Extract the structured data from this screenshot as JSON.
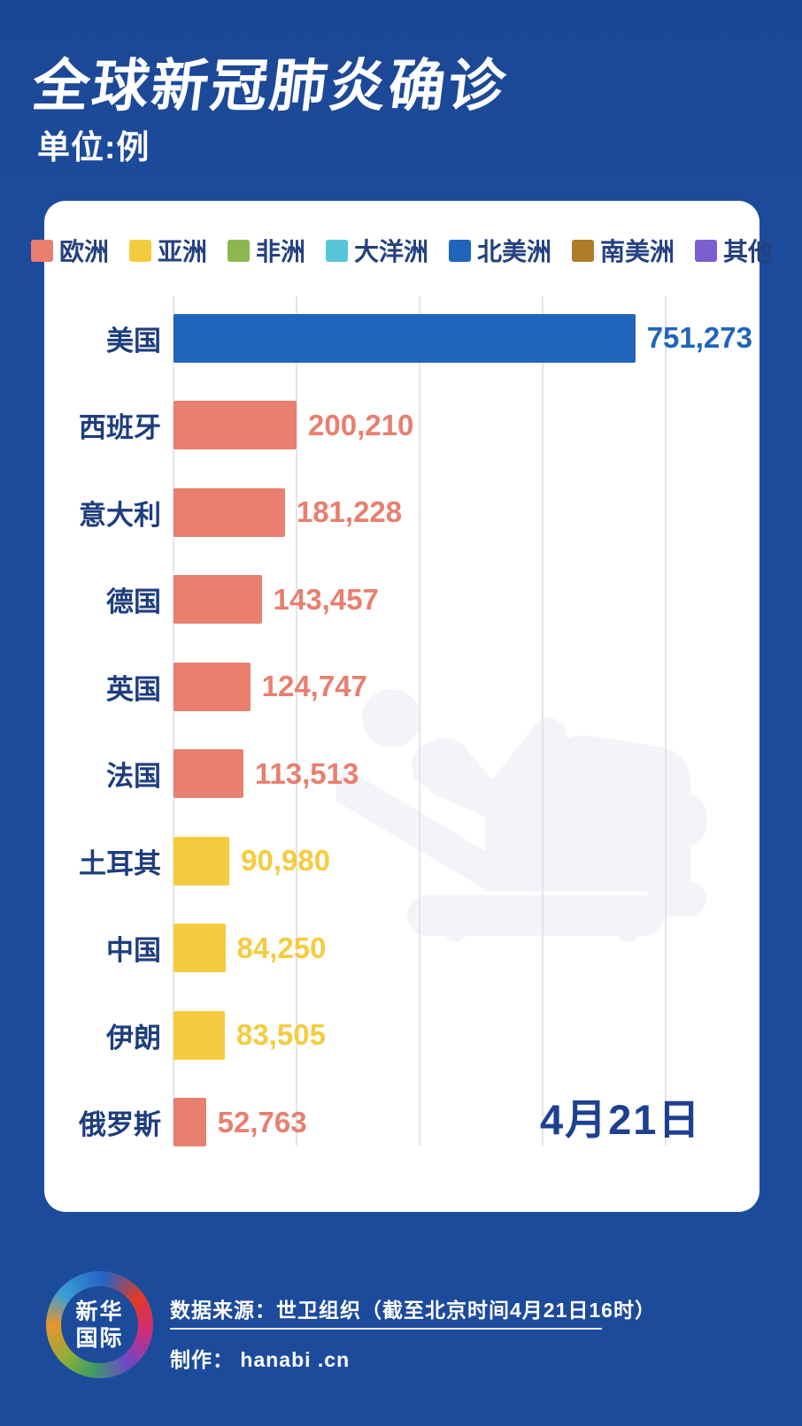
{
  "header": {
    "title": "全球新冠肺炎确诊",
    "subtitle": "单位:例"
  },
  "colors": {
    "background": "#1d4b9c",
    "card": "#ffffff",
    "label_navy": "#1e3d7e",
    "gridline": "#e3e5e9",
    "europe": "#e87f6f",
    "asia": "#f5cc3f",
    "africa": "#8ab84e",
    "oceania": "#56c5d8",
    "north_america": "#2164bb",
    "south_america": "#ad7d2b",
    "other": "#7b5fd0"
  },
  "chart_data": {
    "type": "bar",
    "orientation": "horizontal",
    "title": "全球新冠肺炎确诊",
    "unit": "例",
    "grid": true,
    "legend_position": "top",
    "legend": [
      {
        "label": "欧洲",
        "color": "#e87f6f"
      },
      {
        "label": "亚洲",
        "color": "#f5cc3f"
      },
      {
        "label": "非洲",
        "color": "#8ab84e"
      },
      {
        "label": "大洋洲",
        "color": "#56c5d8"
      },
      {
        "label": "北美洲",
        "color": "#2164bb"
      },
      {
        "label": "南美洲",
        "color": "#ad7d2b"
      },
      {
        "label": "其他",
        "color": "#7b5fd0"
      }
    ],
    "categories": [
      "美国",
      "西班牙",
      "意大利",
      "德国",
      "英国",
      "法国",
      "土耳其",
      "中国",
      "伊朗",
      "俄罗斯"
    ],
    "values": [
      751273,
      200210,
      181228,
      143457,
      124747,
      113513,
      90980,
      84250,
      83505,
      52763
    ],
    "value_labels": [
      "751,273",
      "200,210",
      "181,228",
      "143,457",
      "124,747",
      "113,513",
      "90,980",
      "84,250",
      "83,505",
      "52,763"
    ],
    "continents": [
      "北美洲",
      "欧洲",
      "欧洲",
      "欧洲",
      "欧洲",
      "欧洲",
      "亚洲",
      "亚洲",
      "亚洲",
      "欧洲"
    ],
    "bar_colors": [
      "#2164bb",
      "#e87f6f",
      "#e87f6f",
      "#e87f6f",
      "#e87f6f",
      "#e87f6f",
      "#f5cc3f",
      "#f5cc3f",
      "#f5cc3f",
      "#e87f6f"
    ],
    "axis_max": 921600,
    "gridline_interval": 200000,
    "annotation_date": "4月21日"
  },
  "watermark": {
    "name": "patient-on-hospital-bed-icon"
  },
  "footer": {
    "logo": {
      "line1": "新华",
      "line2": "国际"
    },
    "source": "数据来源：世卫组织（截至北京时间4月21日16时）",
    "credit": "制作： hanabi .cn"
  }
}
